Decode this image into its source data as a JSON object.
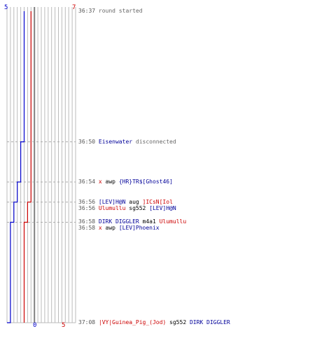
{
  "colors": {
    "team_blue": "#0000cc",
    "team_red": "#cc0000",
    "grid": "#bbbbbb",
    "center": "#808080",
    "dash": "#aaaaaa"
  },
  "scores": {
    "blue_start": "5",
    "red_start": "7",
    "blue_end": "0",
    "red_end": "5"
  },
  "chart_data": {
    "type": "line",
    "series": [
      {
        "color": "#0000cc",
        "x": [
          5,
          5,
          4,
          4,
          3,
          3,
          2,
          2,
          1,
          1,
          0
        ],
        "y": [
          "36:37",
          "36:50",
          "36:50",
          "36:54",
          "36:54",
          "36:56",
          "36:56",
          "36:58",
          "36:58",
          "37:08",
          "37:08"
        ]
      },
      {
        "color": "#cc0000",
        "x": [
          7,
          7,
          6,
          6,
          5,
          5
        ],
        "y": [
          "36:37",
          "36:56",
          "36:56",
          "36:58",
          "36:58",
          "37:08"
        ]
      }
    ],
    "ylim": [
      "36:37",
      "37:08"
    ],
    "grid": true
  },
  "events": [
    {
      "time": "36:37",
      "parts": [
        {
          "text": "round started",
          "c": "g"
        }
      ]
    },
    {
      "time": "36:50",
      "parts": [
        {
          "text": "Eisenwater",
          "c": "b"
        },
        {
          "text": " disconnected",
          "c": "g"
        }
      ]
    },
    {
      "time": "36:54",
      "parts": [
        {
          "text": "x",
          "c": "r"
        },
        {
          "text": " awp ",
          "c": "k"
        },
        {
          "text": "{HR}TR$[Ghost46]",
          "c": "b"
        }
      ]
    },
    {
      "time": "36:56",
      "parts": [
        {
          "text": "[LEV]H@N",
          "c": "b"
        },
        {
          "text": " aug ",
          "c": "k"
        },
        {
          "text": "]ICsN[Iol",
          "c": "r"
        }
      ]
    },
    {
      "time": "36:56",
      "parts": [
        {
          "text": "Ulumullu",
          "c": "r"
        },
        {
          "text": " sg552 ",
          "c": "k"
        },
        {
          "text": "[LEV]H@N",
          "c": "b"
        }
      ]
    },
    {
      "time": "36:58",
      "parts": [
        {
          "text": "DIRK DIGGLER",
          "c": "b"
        },
        {
          "text": " m4a1 ",
          "c": "k"
        },
        {
          "text": "Ulumullu",
          "c": "r"
        }
      ]
    },
    {
      "time": "36:58",
      "parts": [
        {
          "text": "x",
          "c": "r"
        },
        {
          "text": " awp ",
          "c": "k"
        },
        {
          "text": "[LEV]Phoenix",
          "c": "b"
        }
      ]
    },
    {
      "time": "37:08",
      "parts": [
        {
          "text": "|VY|Guinea_Pig_(Jod)",
          "c": "r"
        },
        {
          "text": " sg552 ",
          "c": "k"
        },
        {
          "text": "DIRK DIGGLER",
          "c": "b"
        }
      ]
    }
  ]
}
